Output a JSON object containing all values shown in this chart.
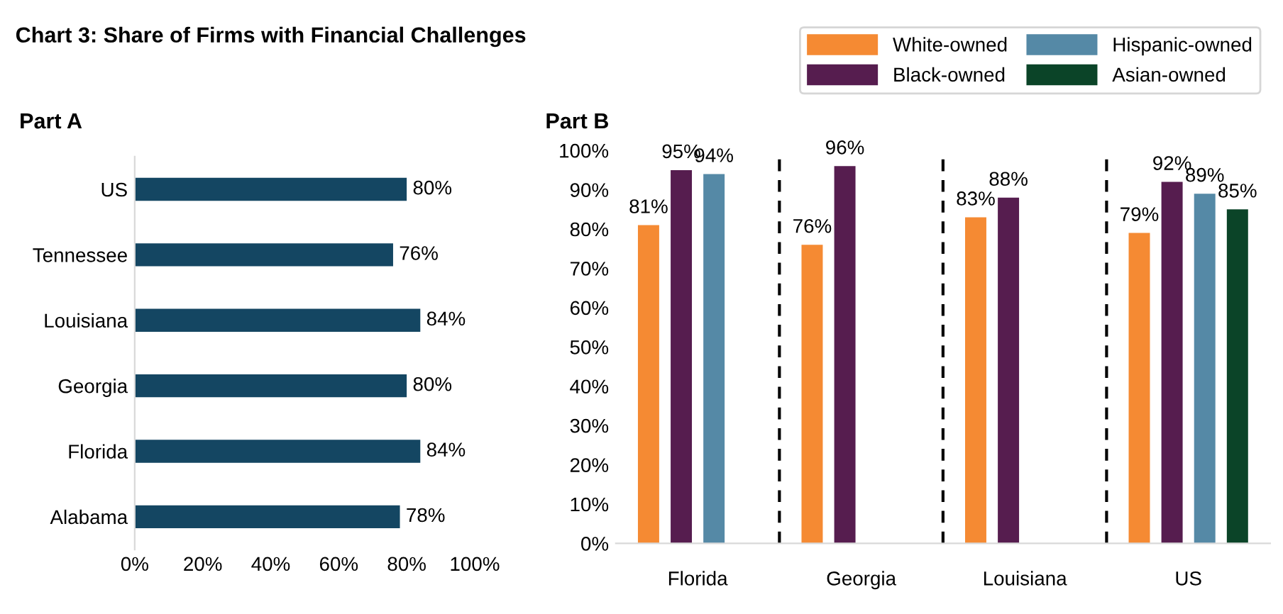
{
  "chart_data": [
    {
      "type": "bar",
      "title": "Chart 3: Share of Firms with Financial Challenges",
      "subtitle": "Part A",
      "orientation": "horizontal",
      "categories": [
        "US",
        "Tennessee",
        "Louisiana",
        "Georgia",
        "Florida",
        "Alabama"
      ],
      "values": [
        80,
        76,
        84,
        80,
        84,
        78
      ],
      "color": "#144662",
      "value_labels": [
        "80%",
        "76%",
        "84%",
        "80%",
        "84%",
        "78%"
      ],
      "xlim": [
        0,
        100
      ],
      "xticks": [
        {
          "value": 0,
          "label": "0%"
        },
        {
          "value": 20,
          "label": "20%"
        },
        {
          "value": 40,
          "label": "40%"
        },
        {
          "value": 60,
          "label": "60%"
        },
        {
          "value": 80,
          "label": "80%"
        },
        {
          "value": 100,
          "label": "100%"
        }
      ],
      "grid": false
    },
    {
      "type": "bar",
      "subtitle": "Part B",
      "categories": [
        "Florida",
        "Georgia",
        "Louisiana",
        "US"
      ],
      "series": [
        {
          "name": "White-owned",
          "color": "#f58a33",
          "values": [
            81,
            76,
            83,
            79
          ],
          "value_labels": [
            "81%",
            "76%",
            "83%",
            "79%"
          ]
        },
        {
          "name": "Black-owned",
          "color": "#561d4f",
          "values": [
            95,
            96,
            88,
            92
          ],
          "value_labels": [
            "95%",
            "96%",
            "88%",
            "92%"
          ]
        },
        {
          "name": "Hispanic-owned",
          "color": "#5589a6",
          "values": [
            94,
            null,
            null,
            89
          ],
          "value_labels": [
            "94%",
            null,
            null,
            "89%"
          ]
        },
        {
          "name": "Asian-owned",
          "color": "#0b4428",
          "values": [
            null,
            null,
            null,
            85
          ],
          "value_labels": [
            null,
            null,
            null,
            "85%"
          ]
        }
      ],
      "ylim": [
        0,
        100
      ],
      "yticks": [
        {
          "value": 0,
          "label": "0%"
        },
        {
          "value": 10,
          "label": "10%"
        },
        {
          "value": 20,
          "label": "20%"
        },
        {
          "value": 30,
          "label": "30%"
        },
        {
          "value": 40,
          "label": "40%"
        },
        {
          "value": 50,
          "label": "50%"
        },
        {
          "value": 60,
          "label": "60%"
        },
        {
          "value": 70,
          "label": "70%"
        },
        {
          "value": 80,
          "label": "80%"
        },
        {
          "value": 90,
          "label": "90%"
        },
        {
          "value": 100,
          "label": "100%"
        }
      ],
      "grid": false,
      "legend": "top"
    }
  ]
}
